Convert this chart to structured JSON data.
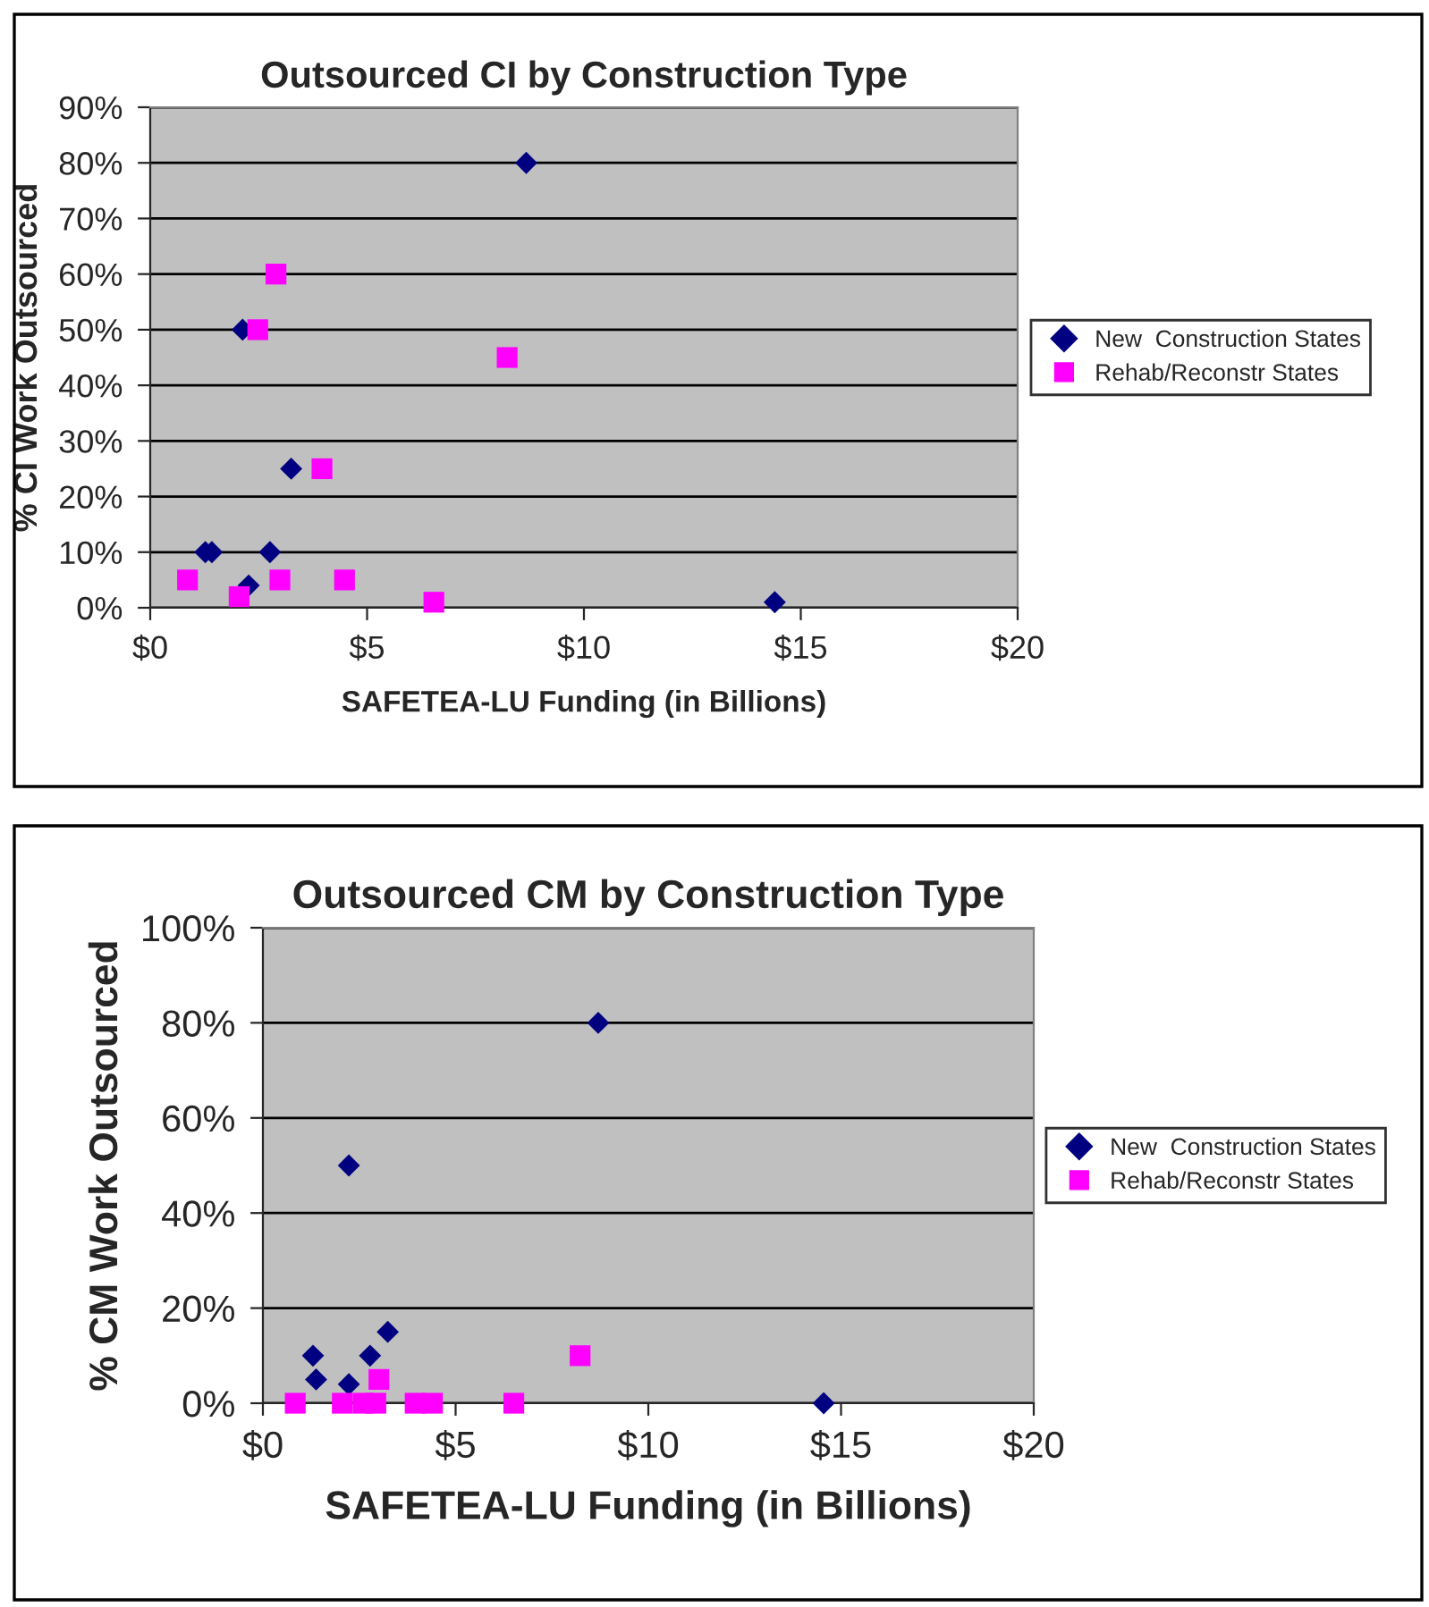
{
  "chart_data": [
    {
      "type": "scatter",
      "title": "Outsourced CI by Construction Type",
      "xlabel": "SAFETEA-LU Funding (in Billions)",
      "ylabel": "% CI Work Outsourced",
      "series": [
        {
          "name": "New  Construction States",
          "color": "#000080",
          "marker": "diamond",
          "x": [
            8.67,
            2.13,
            3.25,
            1.27,
            1.42,
            2.76,
            2.27,
            14.4
          ],
          "values": [
            80,
            50,
            25,
            10,
            10,
            10,
            4,
            1
          ]
        },
        {
          "name": "Rehab/Reconstr States",
          "color": "#ff00ff",
          "marker": "square",
          "x": [
            2.9,
            2.48,
            8.23,
            3.96,
            0.86,
            2.05,
            2.99,
            4.48,
            6.54
          ],
          "values": [
            60,
            50,
            45,
            25,
            5,
            2,
            5,
            5,
            1
          ]
        }
      ],
      "xlim": [
        0,
        20
      ],
      "xticks": [
        {
          "value": 0,
          "label": "$0"
        },
        {
          "value": 5,
          "label": "$5"
        },
        {
          "value": 10,
          "label": "$10"
        },
        {
          "value": 15,
          "label": "$15"
        },
        {
          "value": 20,
          "label": "$20"
        }
      ],
      "ylim": [
        0,
        90
      ],
      "yticks": [
        {
          "value": 0,
          "label": "0%"
        },
        {
          "value": 10,
          "label": "10%"
        },
        {
          "value": 20,
          "label": "20%"
        },
        {
          "value": 30,
          "label": "30%"
        },
        {
          "value": 40,
          "label": "40%"
        },
        {
          "value": 50,
          "label": "50%"
        },
        {
          "value": 60,
          "label": "60%"
        },
        {
          "value": 70,
          "label": "70%"
        },
        {
          "value": 80,
          "label": "80%"
        },
        {
          "value": 90,
          "label": "90%"
        }
      ],
      "grid": "y",
      "legend": "right"
    },
    {
      "type": "scatter",
      "title": "Outsourced CM by Construction Type",
      "xlabel": "SAFETEA-LU Funding (in Billions)",
      "ylabel": "% CM Work Outsourced",
      "series": [
        {
          "name": "New  Construction States",
          "color": "#000080",
          "marker": "diamond",
          "x": [
            8.7,
            2.23,
            3.24,
            1.3,
            2.78,
            1.38,
            2.23,
            14.55
          ],
          "values": [
            80,
            50,
            15,
            10,
            10,
            5,
            4,
            0
          ]
        },
        {
          "name": "Rehab/Reconstr States",
          "color": "#ff00ff",
          "marker": "square",
          "x": [
            8.23,
            3.01,
            0.84,
            2.06,
            2.6,
            2.93,
            3.95,
            4.4,
            6.51
          ],
          "values": [
            10,
            5,
            0,
            0,
            0,
            0,
            0,
            0,
            0
          ]
        }
      ],
      "xlim": [
        0,
        20
      ],
      "xticks": [
        {
          "value": 0,
          "label": "$0"
        },
        {
          "value": 5,
          "label": "$5"
        },
        {
          "value": 10,
          "label": "$10"
        },
        {
          "value": 15,
          "label": "$15"
        },
        {
          "value": 20,
          "label": "$20"
        }
      ],
      "ylim": [
        0,
        100
      ],
      "yticks": [
        {
          "value": 0,
          "label": "0%"
        },
        {
          "value": 20,
          "label": "20%"
        },
        {
          "value": 40,
          "label": "40%"
        },
        {
          "value": 60,
          "label": "60%"
        },
        {
          "value": 80,
          "label": "80%"
        },
        {
          "value": 100,
          "label": "100%"
        }
      ],
      "grid": "y",
      "legend": "right"
    }
  ]
}
